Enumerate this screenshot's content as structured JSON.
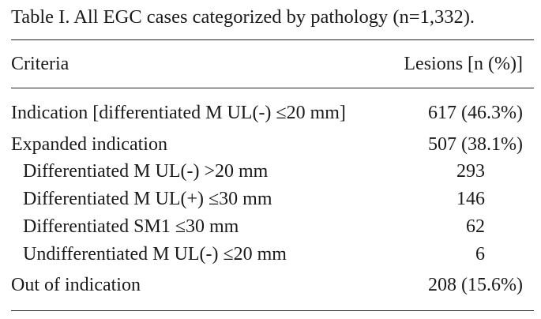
{
  "table": {
    "caption": "Table I. All EGC cases categorized by pathology (n=1,332).",
    "header": {
      "criteria": "Criteria",
      "lesions": "Lesions [n (%)]"
    },
    "rows": [
      {
        "label": "Indication [differentiated M UL(-) ≤20 mm]",
        "value": "617 (46.3%)",
        "indent": false
      },
      {
        "label": "Expanded indication",
        "value": "507 (38.1%)",
        "indent": false
      },
      {
        "label": "Differentiated M UL(-) >20 mm",
        "value": "293",
        "indent": true
      },
      {
        "label": "Differentiated M UL(+) ≤30 mm",
        "value": "146",
        "indent": true
      },
      {
        "label": "Differentiated SM1 ≤30 mm",
        "value": "62",
        "indent": true
      },
      {
        "label": "Undifferentiated M UL(-) ≤20 mm",
        "value": "6",
        "indent": true
      },
      {
        "label": "Out of indication",
        "value": "208 (15.6%)",
        "indent": false
      }
    ]
  }
}
